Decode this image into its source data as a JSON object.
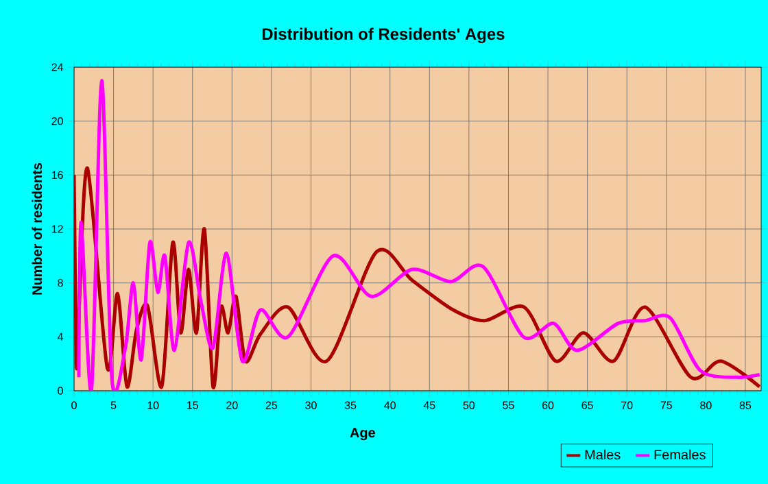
{
  "chart_data": {
    "type": "line",
    "title": "Distribution of Residents' Ages",
    "xlabel": "Age",
    "ylabel": "Number of residents",
    "xlim": [
      0,
      87
    ],
    "xticks": [
      0,
      5,
      10,
      15,
      20,
      25,
      30,
      35,
      40,
      45,
      50,
      55,
      60,
      65,
      70,
      75,
      80,
      85
    ],
    "ylim": [
      0,
      24
    ],
    "yticks": [
      0,
      4,
      8,
      12,
      16,
      20,
      24
    ],
    "grid": true,
    "legend": "bottom right",
    "series": [
      {
        "name": "Males",
        "color": "#aa0000",
        "x": [
          0,
          0.3,
          0.6,
          1.7,
          4.2,
          5.5,
          6.7,
          7.9,
          9.3,
          11.1,
          12.5,
          13.5,
          14.5,
          15.5,
          16.5,
          17.6,
          18.6,
          19.5,
          20.5,
          21.7,
          23.6,
          27.1,
          32,
          38.3,
          42.8,
          48,
          52,
          57,
          61,
          64.5,
          68.3,
          72.3,
          78.1,
          81.9,
          86.8
        ],
        "values": [
          16,
          2,
          5.6,
          16.5,
          1.7,
          7.2,
          0.3,
          4.5,
          6.3,
          0.3,
          11,
          4.3,
          9,
          4.3,
          12,
          0.3,
          6.2,
          4.3,
          7,
          2.2,
          4.2,
          6.2,
          2.2,
          10.3,
          8.2,
          6,
          5.2,
          6.2,
          2.2,
          4.3,
          2.2,
          6.2,
          1,
          2.2,
          0.3
        ]
      },
      {
        "name": "Females",
        "color": "#ff00ff",
        "x": [
          0.6,
          0.9,
          2.2,
          3.5,
          4.8,
          6.5,
          7.5,
          8.5,
          9.6,
          10.6,
          11.5,
          12.7,
          14.5,
          16.1,
          17.6,
          19.3,
          21.3,
          23.6,
          27.1,
          32.8,
          37.6,
          42.8,
          47.7,
          51.8,
          56.9,
          60.7,
          63.7,
          68.9,
          72.3,
          75.5,
          79.3,
          84,
          86.8
        ],
        "values": [
          1,
          12.5,
          0,
          23,
          0.8,
          3.2,
          8,
          2.3,
          11,
          7.3,
          10,
          3,
          11,
          6.5,
          3.2,
          10.2,
          2.2,
          6,
          4,
          10,
          7,
          9,
          8.1,
          9.2,
          4,
          5,
          3,
          5,
          5.2,
          5.4,
          1.5,
          1,
          1.2
        ]
      }
    ]
  }
}
